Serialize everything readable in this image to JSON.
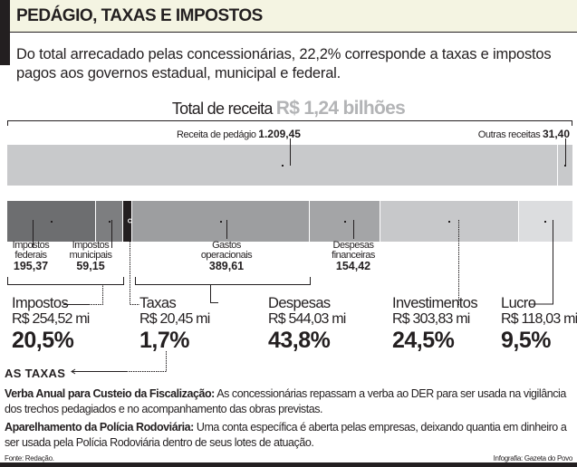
{
  "header": {
    "title": "PEDÁGIO, TAXAS E IMPOSTOS"
  },
  "lead": "Do total arrecadado pelas concessionárias, 22,2% corresponde a taxas e impostos pagos aos governos estadual, municipal e federal.",
  "total": {
    "label": "Total de receita",
    "value": "R$ 1,24 bilhões"
  },
  "chart_data": {
    "type": "bar",
    "unit": "R$ mi",
    "revenue": [
      {
        "label": "Receita de pedágio",
        "value": 1209.45,
        "display": "1.209,45",
        "color": "#c8c9cb"
      },
      {
        "label": "Outras receitas",
        "value": 31.4,
        "display": "31,40",
        "color": "#c8c9cb"
      }
    ],
    "breakdown": [
      {
        "label": "Impostos federais",
        "line1": "Impostos",
        "line2": "federais",
        "value": 195.37,
        "display": "195,37",
        "color": "#6d6e70"
      },
      {
        "label": "Impostos municipais",
        "line1": "Impostos",
        "line2": "municipais",
        "value": 59.15,
        "display": "59,15",
        "color": "#7d7e80"
      },
      {
        "label": "Taxas",
        "value": 20.45,
        "color": "#231f20"
      },
      {
        "label": "Gastos operacionais",
        "line1": "Gastos",
        "line2": "operacionais",
        "value": 389.61,
        "display": "389,61",
        "color": "#9d9ea0"
      },
      {
        "label": "Despesas financeiras",
        "line1": "Despesas",
        "line2": "financeiras",
        "value": 154.42,
        "display": "154,42",
        "color": "#a4a5a7"
      },
      {
        "label": "Investimentos",
        "value": 303.83,
        "color": "#c7c8ca"
      },
      {
        "label": "Lucro",
        "value": 118.03,
        "color": "#dcdddf"
      }
    ],
    "groups": [
      {
        "name": "Impostos",
        "value": "R$ 254,52 mi",
        "percent": "20,5%"
      },
      {
        "name": "Taxas",
        "value": "R$ 20,45 mi",
        "percent": "1,7%"
      },
      {
        "name": "Despesas",
        "value": "R$ 544,03 mi",
        "percent": "43,8%"
      },
      {
        "name": "Investimentos",
        "value": "R$ 303,83 mi",
        "percent": "24,5%"
      },
      {
        "name": "Lucro",
        "value": "R$ 118,03 mi",
        "percent": "9,5%"
      }
    ]
  },
  "taxas": {
    "heading": "AS TAXAS",
    "items": [
      {
        "term": "Verba Anual para Custeio da Fiscalização:",
        "text": "As concessionárias repassam a verba ao DER para ser usada na vigilância dos trechos pedagiados e no acompanhamento das obras previstas."
      },
      {
        "term": "Aparelhamento da Polícia Rodoviária:",
        "text": "Uma conta específica é aberta pelas empresas, deixando quantia em dinheiro a ser usada pela Polícia Rodoviária dentro de seus lotes de atuação."
      }
    ]
  },
  "footer": {
    "source": "Fonte: Redação.",
    "credit": "Infografia: Gazeta do Povo"
  }
}
